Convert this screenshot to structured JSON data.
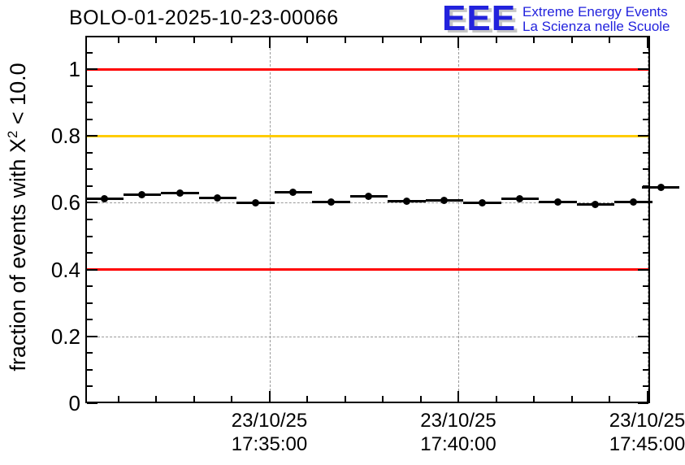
{
  "logo": {
    "acronym": "EEE",
    "line1": "Extreme Energy Events",
    "line2": "La Scienza nelle Scuole",
    "blue": "#2222dd"
  },
  "chart_data": {
    "type": "scatter",
    "title": "BOLO-01-2025-10-23-00066",
    "ylabel": {
      "prefix": "fraction of events with X",
      "sup": "2",
      "suffix": " < 10.0"
    },
    "ylim": [
      0,
      1.1
    ],
    "y_major_ticks": [
      {
        "v": 0,
        "label": "0"
      },
      {
        "v": 0.2,
        "label": "0.2"
      },
      {
        "v": 0.4,
        "label": "0.4"
      },
      {
        "v": 0.6,
        "label": "0.6"
      },
      {
        "v": 0.8,
        "label": "0.8"
      },
      {
        "v": 1,
        "label": "1"
      }
    ],
    "y_minor_step": 0.05,
    "xlim_minutes_from_17_35": [
      -4.87,
      10.08
    ],
    "x_major_ticks": [
      {
        "m": 0,
        "date": "23/10/25",
        "time": "17:35:00"
      },
      {
        "m": 5,
        "date": "23/10/25",
        "time": "17:40:00"
      },
      {
        "m": 10,
        "date": "23/10/25",
        "time": "17:45:00"
      }
    ],
    "x_minor_step_minutes": 1,
    "grid": {
      "on": true,
      "color": "#999999",
      "style": "dashed"
    },
    "threshold_lines": [
      {
        "y": 1.0,
        "color": "#ff0000"
      },
      {
        "y": 0.8,
        "color": "#ffcc00"
      },
      {
        "y": 0.4,
        "color": "#ff0000"
      }
    ],
    "series": [
      {
        "marker": "filled-circle",
        "color": "#000000",
        "x_halfwidth_minutes": 0.5,
        "points": [
          {
            "time": "17:30:38",
            "m": -4.37,
            "y": 0.611
          },
          {
            "time": "17:31:38",
            "m": -3.37,
            "y": 0.624
          },
          {
            "time": "17:32:38",
            "m": -2.37,
            "y": 0.628
          },
          {
            "time": "17:33:38",
            "m": -1.37,
            "y": 0.614
          },
          {
            "time": "17:34:38",
            "m": -0.37,
            "y": 0.601
          },
          {
            "time": "17:35:38",
            "m": 0.63,
            "y": 0.631
          },
          {
            "time": "17:36:38",
            "m": 1.63,
            "y": 0.603
          },
          {
            "time": "17:37:38",
            "m": 2.63,
            "y": 0.62
          },
          {
            "time": "17:38:38",
            "m": 3.63,
            "y": 0.605
          },
          {
            "time": "17:39:38",
            "m": 4.63,
            "y": 0.606
          },
          {
            "time": "17:40:38",
            "m": 5.63,
            "y": 0.599
          },
          {
            "time": "17:41:38",
            "m": 6.63,
            "y": 0.612
          },
          {
            "time": "17:42:38",
            "m": 7.63,
            "y": 0.603
          },
          {
            "time": "17:43:38",
            "m": 8.63,
            "y": 0.594
          },
          {
            "time": "17:44:38",
            "m": 9.63,
            "y": 0.602
          },
          {
            "time": "17:45:22",
            "m": 10.36,
            "y": 0.645
          }
        ]
      }
    ]
  }
}
